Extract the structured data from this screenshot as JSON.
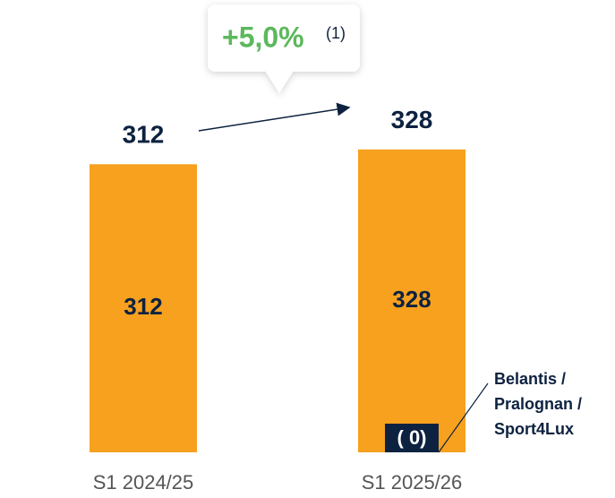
{
  "chart_data": {
    "type": "bar",
    "categories": [
      "S1 2024/25",
      "S1 2025/26"
    ],
    "series": [
      {
        "color": "#f7a11f",
        "values": [
          312,
          328
        ]
      },
      {
        "name": "Belantis / Pralognan / Sport4Lux",
        "color": "#0d2240",
        "values": [
          null,
          0
        ],
        "value_labels": [
          null,
          "( 0)"
        ]
      }
    ],
    "totals": [
      312,
      328
    ],
    "change": {
      "label": "+5,0%",
      "note": "(1)",
      "color": "#5cb85c"
    }
  }
}
